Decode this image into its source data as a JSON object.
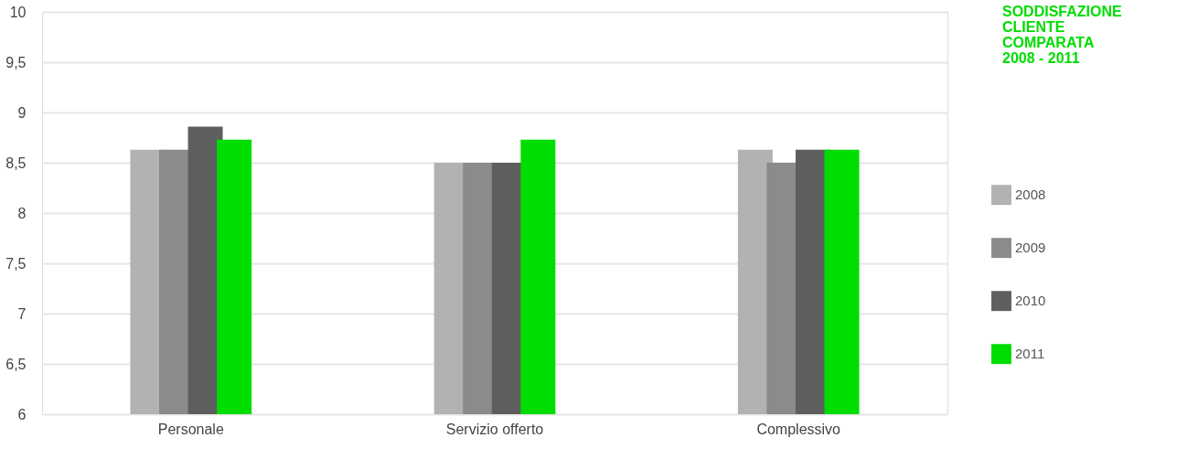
{
  "chart_data": {
    "type": "bar",
    "title": "SODDISFAZIONE\nCLIENTE\nCOMPARATA\n2008 - 2011",
    "categories": [
      "Personale",
      "Servizio offerto",
      "Complessivo"
    ],
    "series": [
      {
        "name": "2008",
        "color": "#b3b1b2",
        "values": [
          8.63,
          8.5,
          8.63
        ]
      },
      {
        "name": "2009",
        "color": "#8c8a8a",
        "values": [
          8.63,
          8.5,
          8.5
        ]
      },
      {
        "name": "2010",
        "color": "#5e5e5e",
        "values": [
          8.86,
          8.5,
          8.63
        ]
      },
      {
        "name": "2011",
        "color": "#00dd00",
        "values": [
          8.73,
          8.73,
          8.63
        ]
      }
    ],
    "ylim": [
      6,
      10
    ],
    "yticks": [
      {
        "value": 6,
        "label": "6"
      },
      {
        "value": 6.5,
        "label": "6,5"
      },
      {
        "value": 7,
        "label": "7"
      },
      {
        "value": 7.5,
        "label": "7,5"
      },
      {
        "value": 8,
        "label": "8"
      },
      {
        "value": 8.5,
        "label": "8,5"
      },
      {
        "value": 9,
        "label": "9"
      },
      {
        "value": 9.5,
        "label": "9,5"
      },
      {
        "value": 10,
        "label": "10"
      }
    ],
    "grid": "y",
    "legend": "right"
  }
}
